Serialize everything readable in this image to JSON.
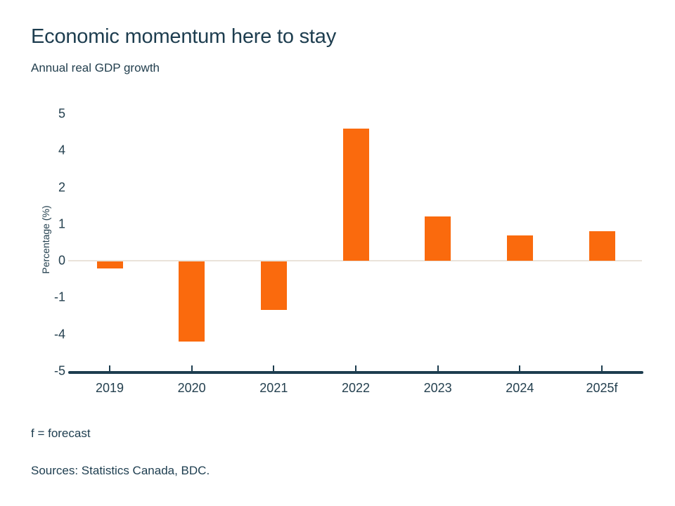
{
  "header": {
    "title": "Economic momentum here to stay",
    "subtitle": "Annual real GDP growth"
  },
  "chart_data": {
    "type": "bar",
    "categories": [
      "2019",
      "2020",
      "2021",
      "2022",
      "2023",
      "2024",
      "2025f"
    ],
    "values": [
      -0.2,
      -4.2,
      -2.0,
      4.6,
      1.2,
      0.7,
      0.8
    ],
    "title": "Economic momentum here to stay",
    "subtitle": "Annual real GDP growth",
    "xlabel": "",
    "ylabel": "Percentage (%)",
    "y_tick_labels": [
      "5",
      "4",
      "2",
      "1",
      "0",
      "-1",
      "-4",
      "-5"
    ],
    "y_tick_values": [
      5,
      4,
      2,
      1,
      0,
      -1,
      -4,
      -5
    ],
    "y_ticks_evenly_spaced": true,
    "grid": false,
    "legend_position": "none",
    "colors": {
      "bar": "#FA6A0D",
      "zero_line": "#EAE3DA",
      "axis": "#1D3D4F",
      "text": "#1D3D4F"
    }
  },
  "footer": {
    "forecast_note": "f = forecast",
    "sources": "Sources: Statistics Canada, BDC."
  }
}
